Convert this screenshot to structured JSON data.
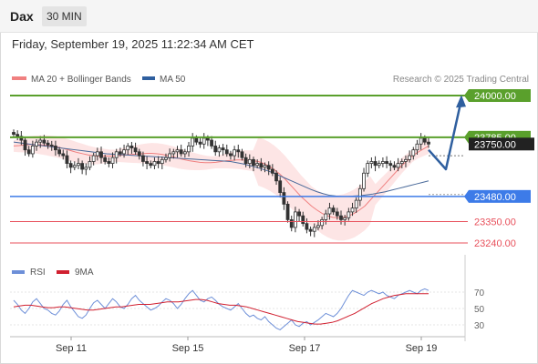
{
  "header": {
    "instrument": "Dax",
    "timeframe": "30 MIN",
    "datetime": "Friday, September 19, 2025 11:22:34 AM CET"
  },
  "legend": {
    "ma20_bb": "MA 20 + Bollinger Bands",
    "ma50": "MA 50",
    "credit": "Research © 2025 Trading Central"
  },
  "rsi_legend": {
    "rsi": "RSI",
    "ma9": "9MA"
  },
  "colors": {
    "bg": "#ffffff",
    "candle": "#333333",
    "bb_fill": "#fde0e0",
    "ma20": "#f08080",
    "ma50": "#4a6a9a",
    "resistance": "#5aa02c",
    "pivot": "#3d7be8",
    "support": "#e8505b",
    "arrow": "#2f5f9f",
    "rsi": "#6d8fd8",
    "rsi_ma": "#d12030",
    "grid": "#e6e6e6"
  },
  "chart_data": [
    {
      "type": "candlestick",
      "title": "Dax 30 MIN",
      "ylim": [
        23180,
        24080
      ],
      "x_ticks": [
        "Sep 11",
        "Sep 15",
        "Sep 17",
        "Sep 19"
      ],
      "levels": [
        {
          "value": 24000.0,
          "label": "24000.00",
          "kind": "target"
        },
        {
          "value": 23785.0,
          "label": "23785.00",
          "kind": "resistance"
        },
        {
          "value": 23480.0,
          "label": "23480.00",
          "kind": "pivot"
        },
        {
          "value": 23350.0,
          "label": "23350.00",
          "kind": "support"
        },
        {
          "value": 23240.0,
          "label": "23240.00",
          "kind": "support"
        }
      ],
      "last_price": {
        "value": 23750.0,
        "label": "23750.00"
      },
      "forecast_path": [
        23720,
        23620,
        23980
      ],
      "close_series": [
        23800,
        23790,
        23770,
        23720,
        23700,
        23740,
        23760,
        23770,
        23755,
        23745,
        23740,
        23720,
        23700,
        23690,
        23650,
        23630,
        23640,
        23650,
        23620,
        23630,
        23660,
        23690,
        23710,
        23680,
        23660,
        23650,
        23680,
        23710,
        23700,
        23720,
        23740,
        23730,
        23710,
        23690,
        23660,
        23650,
        23640,
        23660,
        23650,
        23670,
        23680,
        23700,
        23710,
        23720,
        23700,
        23710,
        23740,
        23780,
        23760,
        23750,
        23780,
        23770,
        23740,
        23710,
        23730,
        23720,
        23700,
        23690,
        23720,
        23710,
        23680,
        23650,
        23670,
        23640,
        23650,
        23630,
        23640,
        23620,
        23600,
        23560,
        23500,
        23440,
        23360,
        23320,
        23400,
        23380,
        23340,
        23310,
        23300,
        23320,
        23330,
        23360,
        23390,
        23420,
        23400,
        23380,
        23360,
        23370,
        23400,
        23420,
        23460,
        23520,
        23600,
        23650,
        23660,
        23640,
        23650,
        23660,
        23650,
        23640,
        23630,
        23650,
        23660,
        23670,
        23690,
        23720,
        23750,
        23780,
        23760,
        23750
      ],
      "ma20": [
        23740,
        23742,
        23745,
        23748,
        23748,
        23746,
        23744,
        23740,
        23736,
        23730,
        23722,
        23714,
        23706,
        23700,
        23694,
        23690,
        23688,
        23688,
        23688,
        23690,
        23692,
        23694,
        23696,
        23698,
        23700,
        23702,
        23702,
        23700,
        23696,
        23690,
        23684,
        23676,
        23670,
        23664,
        23660,
        23656,
        23654,
        23654,
        23656,
        23660,
        23664,
        23666,
        23668,
        23668,
        23666,
        23664,
        23660,
        23650,
        23636,
        23618,
        23596,
        23570,
        23540,
        23510,
        23480,
        23455,
        23430,
        23410,
        23392,
        23380,
        23372,
        23370,
        23372,
        23380,
        23392,
        23410,
        23430,
        23460,
        23490,
        23520,
        23550,
        23580,
        23610,
        23640,
        23665,
        23690,
        23708,
        23724,
        23740
      ],
      "ma50": [
        23760,
        23756,
        23752,
        23748,
        23744,
        23740,
        23736,
        23732,
        23728,
        23724,
        23720,
        23716,
        23712,
        23708,
        23704,
        23700,
        23698,
        23696,
        23694,
        23692,
        23690,
        23688,
        23686,
        23684,
        23682,
        23680,
        23678,
        23676,
        23674,
        23672,
        23670,
        23668,
        23666,
        23664,
        23662,
        23660,
        23654,
        23648,
        23640,
        23632,
        23622,
        23612,
        23600,
        23586,
        23572,
        23558,
        23544,
        23530,
        23516,
        23504,
        23494,
        23486,
        23482,
        23480,
        23480,
        23482,
        23484,
        23488,
        23492,
        23498,
        23504,
        23512,
        23520,
        23528,
        23536,
        23544,
        23552,
        23560
      ]
    },
    {
      "type": "line",
      "title": "RSI",
      "ylim": [
        20,
        80
      ],
      "y_ticks": [
        70,
        50,
        30
      ],
      "series": [
        {
          "name": "RSI",
          "values": [
            60,
            55,
            48,
            44,
            50,
            58,
            62,
            56,
            50,
            48,
            44,
            42,
            47,
            55,
            60,
            52,
            46,
            40,
            38,
            42,
            50,
            57,
            60,
            55,
            50,
            56,
            62,
            58,
            52,
            50,
            55,
            62,
            66,
            60,
            56,
            52,
            48,
            50,
            53,
            58,
            62,
            60,
            56,
            50,
            55,
            62,
            68,
            72,
            66,
            60,
            58,
            62,
            64,
            60,
            55,
            52,
            50,
            48,
            52,
            56,
            50,
            44,
            40,
            42,
            38,
            36,
            40,
            34,
            30,
            26,
            24,
            28,
            32,
            36,
            30,
            28,
            32,
            34,
            30,
            33,
            36,
            40,
            44,
            42,
            40,
            44,
            50,
            58,
            66,
            72,
            70,
            68,
            66,
            70,
            72,
            70,
            68,
            70,
            66,
            64,
            62,
            66,
            68,
            70,
            72,
            70,
            68,
            72,
            74,
            72
          ]
        },
        {
          "name": "9MA",
          "values": [
            52,
            53,
            54,
            54,
            53,
            52,
            51,
            51,
            52,
            52,
            51,
            50,
            49,
            48,
            48,
            49,
            50,
            51,
            52,
            52,
            53,
            54,
            55,
            55,
            55,
            56,
            57,
            58,
            58,
            58,
            59,
            60,
            61,
            61,
            60,
            58,
            56,
            55,
            54,
            54,
            53,
            52,
            50,
            48,
            46,
            44,
            42,
            40,
            38,
            36,
            34,
            33,
            32,
            31,
            31,
            32,
            33,
            35,
            38,
            41,
            44,
            48,
            52,
            56,
            59,
            62,
            64,
            66,
            67,
            68,
            68,
            68,
            68,
            68
          ]
        }
      ]
    }
  ]
}
